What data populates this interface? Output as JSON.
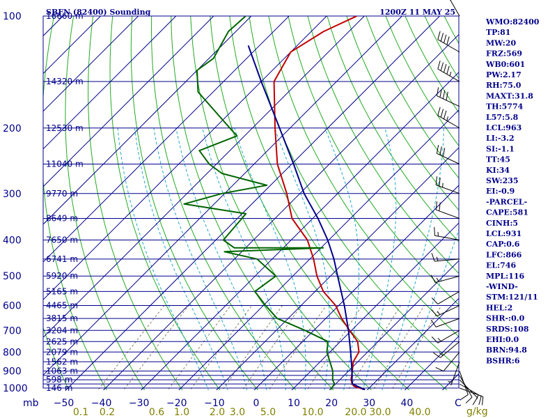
{
  "header": {
    "title": "SBFN (82400) Sounding",
    "valid_time": "1200Z 11 MAY 25"
  },
  "chart_data": {
    "type": "line",
    "subtype": "skew-t log-p",
    "pressure_axis_unit": "mb",
    "pressure_ticks": [
      100,
      200,
      300,
      400,
      500,
      600,
      700,
      800,
      900,
      1000
    ],
    "temperature_axis_unit": "C",
    "temperature_ticks": [
      -50,
      -40,
      -30,
      -20,
      -10,
      0,
      10,
      20,
      30,
      40
    ],
    "mixing_ratio_unit": "g/kg",
    "mixing_ratio_ticks": [
      "0.1",
      "0.2",
      "0.6",
      "1.0",
      "2.0",
      "3.0",
      "5.0",
      "10.0",
      "20.0",
      "30.0",
      "40.0"
    ],
    "height_labels": [
      {
        "p": 100,
        "text": "16660 m"
      },
      {
        "p": 150,
        "text": "14320 m"
      },
      {
        "p": 200,
        "text": "12530 m"
      },
      {
        "p": 250,
        "text": "11040 m"
      },
      {
        "p": 300,
        "text": "9770 m"
      },
      {
        "p": 350,
        "text": "8649 m"
      },
      {
        "p": 400,
        "text": "7650 m"
      },
      {
        "p": 450,
        "text": "6741 m"
      },
      {
        "p": 500,
        "text": "5920 m"
      },
      {
        "p": 550,
        "text": "5165 m"
      },
      {
        "p": 600,
        "text": "4465 m"
      },
      {
        "p": 650,
        "text": "3815 m"
      },
      {
        "p": 700,
        "text": "3204 m"
      },
      {
        "p": 750,
        "text": "2625 m"
      },
      {
        "p": 800,
        "text": "2079 m"
      },
      {
        "p": 850,
        "text": "1562 m"
      },
      {
        "p": 900,
        "text": "1063 m"
      },
      {
        "p": 950,
        "text": "598 m"
      },
      {
        "p": 1000,
        "text": "146 m"
      }
    ],
    "series": [
      {
        "kind": "temperature",
        "color": "#c00000",
        "points": [
          [
            1010,
            29.3
          ],
          [
            990,
            25.6
          ],
          [
            975,
            24.4
          ],
          [
            950,
            23.0
          ],
          [
            900,
            21.0
          ],
          [
            850,
            18.8
          ],
          [
            800,
            17.7
          ],
          [
            750,
            14.6
          ],
          [
            700,
            9.5
          ],
          [
            650,
            4.2
          ],
          [
            600,
            -0.8
          ],
          [
            550,
            -7.8
          ],
          [
            500,
            -13.6
          ],
          [
            450,
            -19.0
          ],
          [
            400,
            -25.7
          ],
          [
            350,
            -35.5
          ],
          [
            300,
            -43.5
          ],
          [
            250,
            -53.8
          ],
          [
            200,
            -64.0
          ],
          [
            150,
            -76.6
          ],
          [
            125,
            -80.0
          ],
          [
            110,
            -76.7
          ],
          [
            100,
            -72.0
          ]
        ]
      },
      {
        "kind": "dewpoint",
        "color": "#006400",
        "points": [
          [
            1010,
            20.2
          ],
          [
            975,
            19.7
          ],
          [
            950,
            18.1
          ],
          [
            900,
            15.8
          ],
          [
            850,
            12.6
          ],
          [
            800,
            9.2
          ],
          [
            750,
            6.7
          ],
          [
            700,
            -2.3
          ],
          [
            650,
            -12.9
          ],
          [
            600,
            -19.4
          ],
          [
            550,
            -26.0
          ],
          [
            500,
            -24.5
          ],
          [
            450,
            -34.0
          ],
          [
            430,
            -44.6
          ],
          [
            420,
            -19.4
          ],
          [
            420,
            -43.0
          ],
          [
            400,
            -48.0
          ],
          [
            350,
            -48.8
          ],
          [
            340,
            -49.0
          ],
          [
            320,
            -68.0
          ],
          [
            300,
            -60.7
          ],
          [
            285,
            -51.0
          ],
          [
            265,
            -66.0
          ],
          [
            250,
            -71.9
          ],
          [
            230,
            -78.1
          ],
          [
            210,
            -72.0
          ],
          [
            200,
            -76.0
          ],
          [
            160,
            -94.0
          ],
          [
            140,
            -100.0
          ],
          [
            130,
            -98.8
          ],
          [
            110,
            -102.0
          ],
          [
            100,
            -101.5
          ]
        ]
      },
      {
        "kind": "parcel",
        "color": "#00008b",
        "points": [
          [
            1010,
            29.3
          ],
          [
            990,
            26.5
          ],
          [
            975,
            24.5
          ],
          [
            950,
            23.2
          ],
          [
            931,
            22.4
          ],
          [
            900,
            20.9
          ],
          [
            850,
            18.3
          ],
          [
            800,
            15.5
          ],
          [
            700,
            9.2
          ],
          [
            600,
            1.5
          ],
          [
            500,
            -8.1
          ],
          [
            450,
            -13.6
          ],
          [
            400,
            -20.3
          ],
          [
            350,
            -28.6
          ],
          [
            300,
            -38.9
          ],
          [
            250,
            -49.5
          ],
          [
            200,
            -62.8
          ],
          [
            150,
            -80.0
          ],
          [
            120,
            -93.0
          ]
        ]
      }
    ],
    "wind_barbs": [
      {
        "p": 1000,
        "dir": 110,
        "spd": 10
      },
      {
        "p": 975,
        "dir": 120,
        "spd": 15
      },
      {
        "p": 950,
        "dir": 135,
        "spd": 10
      },
      {
        "p": 925,
        "dir": 150,
        "spd": 10
      },
      {
        "p": 900,
        "dir": 160,
        "spd": 10
      },
      {
        "p": 850,
        "dir": 200,
        "spd": 5
      },
      {
        "p": 800,
        "dir": 220,
        "spd": 10
      },
      {
        "p": 750,
        "dir": 230,
        "spd": 15
      },
      {
        "p": 700,
        "dir": 240,
        "spd": 15
      },
      {
        "p": 650,
        "dir": 250,
        "spd": 10
      },
      {
        "p": 600,
        "dir": 245,
        "spd": 15
      },
      {
        "p": 550,
        "dir": 240,
        "spd": 10
      },
      {
        "p": 500,
        "dir": 255,
        "spd": 15
      },
      {
        "p": 450,
        "dir": 265,
        "spd": 15
      },
      {
        "p": 400,
        "dir": 280,
        "spd": 15
      },
      {
        "p": 350,
        "dir": 290,
        "spd": 20
      },
      {
        "p": 300,
        "dir": 290,
        "spd": 25
      },
      {
        "p": 250,
        "dir": 295,
        "spd": 30
      },
      {
        "p": 200,
        "dir": 300,
        "spd": 35
      },
      {
        "p": 175,
        "dir": 295,
        "spd": 40
      },
      {
        "p": 150,
        "dir": 300,
        "spd": 45
      },
      {
        "p": 125,
        "dir": 300,
        "spd": 40
      },
      {
        "p": 100,
        "dir": 330,
        "spd": 25
      }
    ],
    "parameters": [
      "WMO:82400",
      "TP:81",
      "MW:20",
      "FRZ:569",
      "WB0:601",
      "PW:2.17",
      "RH:75.0",
      "MAXT:31.8",
      "TH:5774",
      "L57:5.8",
      "LCL:963",
      "LI:-3.2",
      "SI:-1.1",
      "TT:45",
      "KI:34",
      "SW:235",
      "EI:-0.9",
      "-PARCEL-",
      "CAPE:581",
      "CINH:5",
      "LCL:931",
      "CAP:0.6",
      "LFC:866",
      "EL:746",
      "MPL:116",
      "-WIND-",
      "STM:121/11",
      "HEL:2",
      "SHR-:0.0",
      "SRDS:108",
      "EHI:0.0",
      "BRN:94.8",
      "BSHR:6"
    ]
  }
}
